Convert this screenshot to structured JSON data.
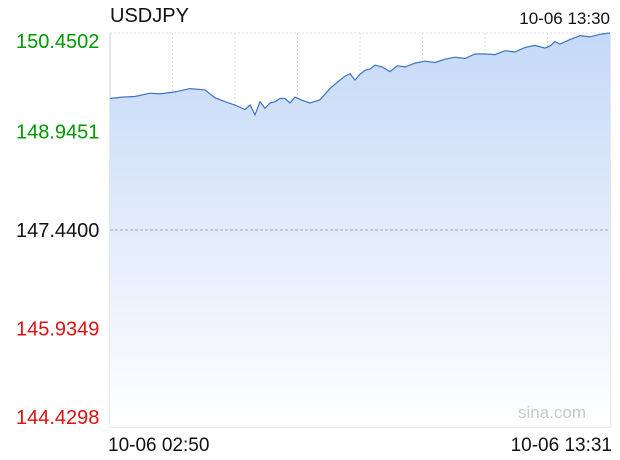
{
  "chart_data": {
    "type": "area",
    "title": "USDJPY",
    "timestamp": "10-06 13:30",
    "watermark": "sina.com",
    "x_start_label": "10-06 02:50",
    "x_end_label": "10-06 13:31",
    "ylim": [
      144.4298,
      150.4502
    ],
    "y_ticks": [
      {
        "label": "150.4502",
        "value": 150.4502,
        "color": "#009900"
      },
      {
        "label": "148.9451",
        "value": 148.9451,
        "color": "#009900"
      },
      {
        "label": "147.4400",
        "value": 147.44,
        "color": "#111111"
      },
      {
        "label": "145.9349",
        "value": 145.9349,
        "color": "#dd1111"
      },
      {
        "label": "144.4298",
        "value": 144.4298,
        "color": "#dd1111"
      }
    ],
    "reference_value": 147.44,
    "grid": true,
    "x_grid_count": 8,
    "colors": {
      "line": "#3f72c4",
      "fill_top": "#c5d9f7",
      "fill_bottom": "#ffffff",
      "grid": "#dddddd",
      "reference": "#9aa3b5"
    },
    "x": [
      0,
      0.025,
      0.05,
      0.08,
      0.1,
      0.13,
      0.16,
      0.19,
      0.21,
      0.23,
      0.25,
      0.27,
      0.28,
      0.29,
      0.3,
      0.31,
      0.32,
      0.33,
      0.34,
      0.35,
      0.36,
      0.37,
      0.385,
      0.4,
      0.42,
      0.44,
      0.455,
      0.47,
      0.48,
      0.49,
      0.5,
      0.51,
      0.52,
      0.53,
      0.545,
      0.56,
      0.575,
      0.59,
      0.61,
      0.63,
      0.65,
      0.67,
      0.69,
      0.71,
      0.73,
      0.75,
      0.77,
      0.79,
      0.81,
      0.83,
      0.85,
      0.87,
      0.88,
      0.89,
      0.9,
      0.92,
      0.94,
      0.96,
      0.98,
      1.0
    ],
    "values": [
      149.45,
      149.47,
      149.48,
      149.53,
      149.52,
      149.55,
      149.6,
      149.58,
      149.46,
      149.4,
      149.35,
      149.28,
      149.35,
      149.2,
      149.4,
      149.3,
      149.38,
      149.4,
      149.45,
      149.45,
      149.38,
      149.47,
      149.42,
      149.38,
      149.43,
      149.6,
      149.7,
      149.79,
      149.83,
      149.73,
      149.82,
      149.88,
      149.9,
      149.96,
      149.93,
      149.86,
      149.95,
      149.93,
      149.99,
      150.02,
      150.0,
      150.05,
      150.08,
      150.06,
      150.13,
      150.13,
      150.12,
      150.18,
      150.16,
      150.23,
      150.26,
      150.22,
      150.25,
      150.32,
      150.28,
      150.35,
      150.41,
      150.39,
      150.43,
      150.45
    ]
  }
}
